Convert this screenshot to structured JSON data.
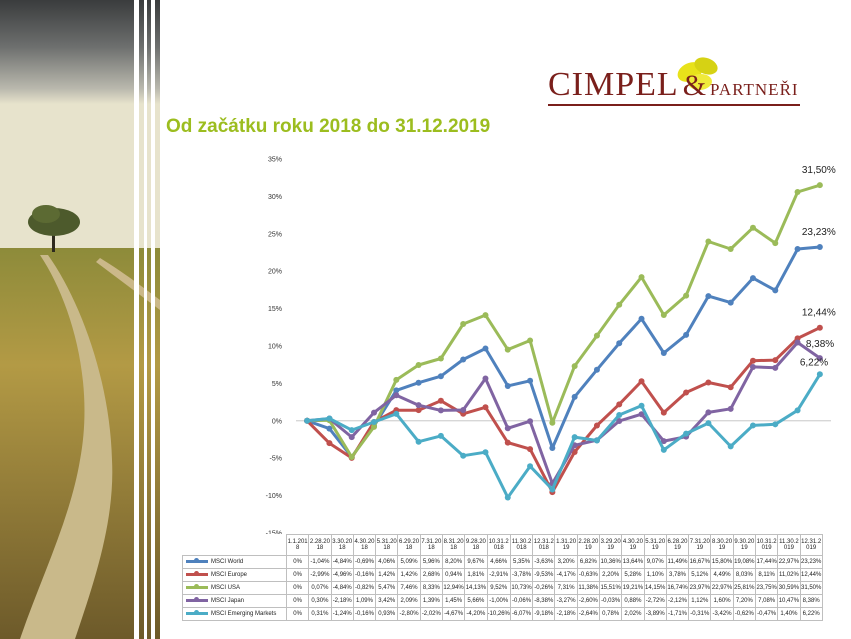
{
  "title": "Od začátku roku 2018 do 31.12.2019",
  "brand": {
    "main": "CIMPEL",
    "amp": "&",
    "sub": "PARTNEŘI",
    "main_color": "#7a1f1b",
    "accent_color": "#e8e21a"
  },
  "chart_data": {
    "type": "line",
    "title": "",
    "xlabel": "",
    "ylabel": "",
    "ylim": [
      -15,
      35
    ],
    "yticks": [
      "35%",
      "30%",
      "25%",
      "20%",
      "15%",
      "10%",
      "5%",
      "0%",
      "-5%",
      "-10%",
      "-15%"
    ],
    "grid": false,
    "legend": "table-below",
    "x": [
      "1.1.2018",
      "2.28.2018",
      "3.30.2018",
      "4.30.2018",
      "5.31.2018",
      "6.29.2018",
      "7.31.2018",
      "8.31.2018",
      "9.28.2018",
      "10.31.2018",
      "11.30.2018",
      "12.31.2018",
      "1.31.2019",
      "2.28.2019",
      "3.29.2019",
      "4.30.2019",
      "5.31.2019",
      "6.28.2019",
      "7.31.2019",
      "8.30.2019",
      "9.30.2019",
      "10.31.2019",
      "11.30.2019",
      "12.31.2019"
    ],
    "end_labels": [
      "23,23%",
      "12,44%",
      "31,50%",
      "8,38%",
      "6,22%"
    ],
    "series": [
      {
        "name": "MSCI World",
        "color": "#4f81bd",
        "values": [
          0,
          -1.04,
          -4.84,
          -0.69,
          4.06,
          5.09,
          5.96,
          8.2,
          9.67,
          4.66,
          5.35,
          -3.63,
          3.2,
          6.82,
          10.36,
          13.64,
          9.07,
          11.49,
          16.67,
          15.8,
          19.08,
          17.44,
          22.97,
          23.23
        ],
        "labels": [
          "0%",
          "-1,04%",
          "-4,84%",
          "-0,69%",
          "4,06%",
          "5,09%",
          "5,96%",
          "8,20%",
          "9,67%",
          "4,66%",
          "5,35%",
          "-3,63%",
          "3,20%",
          "6,82%",
          "10,36%",
          "13,64%",
          "9,07%",
          "11,49%",
          "16,67%",
          "15,80%",
          "19,08%",
          "17,44%",
          "22,97%",
          "23,23%"
        ]
      },
      {
        "name": "MSCI Europe",
        "color": "#c0504d",
        "values": [
          0,
          -2.99,
          -4.96,
          -0.16,
          1.42,
          1.42,
          2.68,
          0.94,
          1.81,
          -2.91,
          -3.78,
          -9.53,
          -4.17,
          -0.63,
          2.2,
          5.28,
          1.1,
          3.78,
          5.12,
          4.49,
          8.03,
          8.11,
          11.02,
          12.44
        ],
        "labels": [
          "0%",
          "-2,99%",
          "-4,96%",
          "-0,16%",
          "1,42%",
          "1,42%",
          "2,68%",
          "0,94%",
          "1,81%",
          "-2,91%",
          "-3,78%",
          "-9,53%",
          "-4,17%",
          "-0,63%",
          "2,20%",
          "5,28%",
          "1,10%",
          "3,78%",
          "5,12%",
          "4,49%",
          "8,03%",
          "8,11%",
          "11,02%",
          "12,44%"
        ]
      },
      {
        "name": "MSCI USA",
        "color": "#9bbb59",
        "values": [
          0,
          0.07,
          -4.84,
          -0.82,
          5.47,
          7.46,
          8.33,
          12.94,
          14.13,
          9.52,
          10.73,
          -0.26,
          7.31,
          11.38,
          15.51,
          19.21,
          14.15,
          16.74,
          23.97,
          22.97,
          25.81,
          23.75,
          30.59,
          31.5
        ],
        "labels": [
          "0%",
          "0,07%",
          "-4,84%",
          "-0,82%",
          "5,47%",
          "7,46%",
          "8,33%",
          "12,94%",
          "14,13%",
          "9,52%",
          "10,73%",
          "-0,26%",
          "7,31%",
          "11,38%",
          "15,51%",
          "19,21%",
          "14,15%",
          "16,74%",
          "23,97%",
          "22,97%",
          "25,81%",
          "23,75%",
          "30,59%",
          "31,50%"
        ]
      },
      {
        "name": "MSCI Japan",
        "color": "#8064a2",
        "values": [
          0,
          0.3,
          -2.18,
          1.09,
          3.42,
          2.09,
          1.39,
          1.45,
          5.66,
          -1.0,
          -0.06,
          -8.38,
          -3.27,
          -2.6,
          -0.03,
          0.88,
          -2.72,
          -2.12,
          1.12,
          1.6,
          7.2,
          7.08,
          10.47,
          8.38
        ],
        "labels": [
          "0%",
          "0,30%",
          "-2,18%",
          "1,09%",
          "3,42%",
          "2,09%",
          "1,39%",
          "1,45%",
          "5,66%",
          "-1,00%",
          "-0,06%",
          "-8,38%",
          "-3,27%",
          "-2,60%",
          "-0,03%",
          "0,88%",
          "-2,72%",
          "-2,12%",
          "1,12%",
          "1,60%",
          "7,20%",
          "7,08%",
          "10,47%",
          "8,38%"
        ]
      },
      {
        "name": "MSCI Emerging Markets",
        "color": "#4bacc6",
        "values": [
          0,
          0.31,
          -1.24,
          -0.16,
          0.93,
          -2.8,
          -2.02,
          -4.67,
          -4.2,
          -10.26,
          -6.07,
          -9.18,
          -2.18,
          -2.64,
          0.78,
          2.02,
          -3.89,
          -1.71,
          -0.31,
          -3.42,
          -0.62,
          -0.47,
          1.4,
          6.22
        ],
        "labels": [
          "0%",
          "0,31%",
          "-1,24%",
          "-0,16%",
          "0,93%",
          "-2,80%",
          "-2,02%",
          "-4,67%",
          "-4,20%",
          "-10,26%",
          "-6,07%",
          "-9,18%",
          "-2,18%",
          "-2,64%",
          "0,78%",
          "2,02%",
          "-3,89%",
          "-1,71%",
          "-0,31%",
          "-3,42%",
          "-0,62%",
          "-0,47%",
          "1,40%",
          "6,22%"
        ]
      }
    ]
  }
}
